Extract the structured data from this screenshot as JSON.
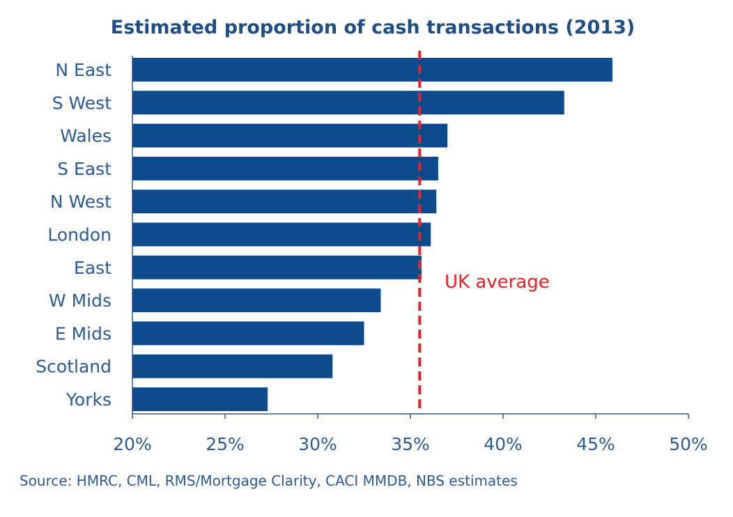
{
  "chart_data": {
    "type": "bar",
    "orientation": "horizontal",
    "title": "Estimated proportion of cash transactions (2013)",
    "categories": [
      "N East",
      "S West",
      "Wales",
      "S East",
      "N West",
      "London",
      "East",
      "W Mids",
      "E Mids",
      "Scotland",
      "Yorks"
    ],
    "values": [
      45.9,
      43.3,
      37.0,
      36.5,
      36.4,
      36.1,
      35.6,
      33.4,
      32.5,
      30.8,
      27.3
    ],
    "xlim": [
      20,
      50
    ],
    "xticks": [
      20,
      25,
      30,
      35,
      40,
      45,
      50
    ],
    "xtick_labels": [
      "20%",
      "25%",
      "30%",
      "35%",
      "40%",
      "45%",
      "50%"
    ],
    "xlabel": "",
    "ylabel": "",
    "reference_line": {
      "label": "UK average",
      "value": 35.5,
      "color": "#e8202a"
    },
    "bar_color": "#0d4a8c",
    "source": "Source: HMRC, CML, RMS/Mortgage Clarity, CACI MMDB, NBS estimates",
    "grid": false
  }
}
